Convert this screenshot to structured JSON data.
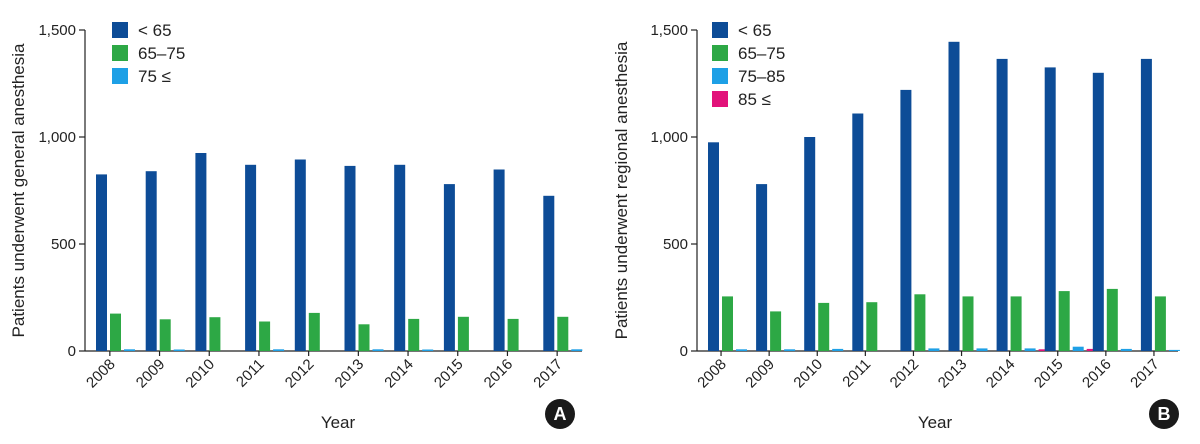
{
  "chart_data": [
    {
      "type": "bar",
      "panel_label": "A",
      "categories": [
        "2008",
        "2009",
        "2010",
        "2011",
        "2012",
        "2013",
        "2014",
        "2015",
        "2016",
        "2017"
      ],
      "series": [
        {
          "name": "< 65",
          "color": "#0D4C97",
          "values": [
            825,
            840,
            925,
            870,
            895,
            865,
            870,
            780,
            848,
            725
          ]
        },
        {
          "name": "65–75",
          "color": "#2DA845",
          "values": [
            175,
            148,
            158,
            138,
            178,
            125,
            150,
            160,
            150,
            160
          ]
        },
        {
          "name": "75 ≤",
          "color": "#1EA0E6",
          "values": [
            8,
            7,
            0,
            8,
            0,
            8,
            7,
            0,
            0,
            8
          ]
        }
      ],
      "xlabel": "Year",
      "ylabel": "Patients underwent general anesthesia",
      "ylim": [
        0,
        1500
      ],
      "yticks": [
        0,
        500,
        1000,
        1500
      ],
      "ytick_labels": [
        "0",
        "500",
        "1,000",
        "1,500"
      ],
      "legend": "top-left"
    },
    {
      "type": "bar",
      "panel_label": "B",
      "categories": [
        "2008",
        "2009",
        "2010",
        "2011",
        "2012",
        "2013",
        "2014",
        "2015",
        "2016",
        "2017"
      ],
      "series": [
        {
          "name": "< 65",
          "color": "#0D4C97",
          "values": [
            975,
            780,
            1000,
            1110,
            1220,
            1445,
            1365,
            1325,
            1300,
            1365
          ]
        },
        {
          "name": "65–75",
          "color": "#2DA845",
          "values": [
            255,
            185,
            225,
            228,
            265,
            255,
            255,
            280,
            290,
            255
          ]
        },
        {
          "name": "75–85",
          "color": "#1EA0E6",
          "values": [
            8,
            8,
            10,
            0,
            12,
            12,
            12,
            20,
            10,
            5
          ]
        },
        {
          "name": "85 ≤",
          "color": "#E2127A",
          "values": [
            0,
            0,
            0,
            0,
            0,
            0,
            8,
            10,
            0,
            0
          ]
        }
      ],
      "xlabel": "Year",
      "ylabel": "Patients underwent regional anesthesia",
      "ylim": [
        0,
        1500
      ],
      "yticks": [
        0,
        500,
        1000,
        1500
      ],
      "ytick_labels": [
        "0",
        "500",
        "1,000",
        "1,500"
      ],
      "legend": "top-left"
    }
  ]
}
